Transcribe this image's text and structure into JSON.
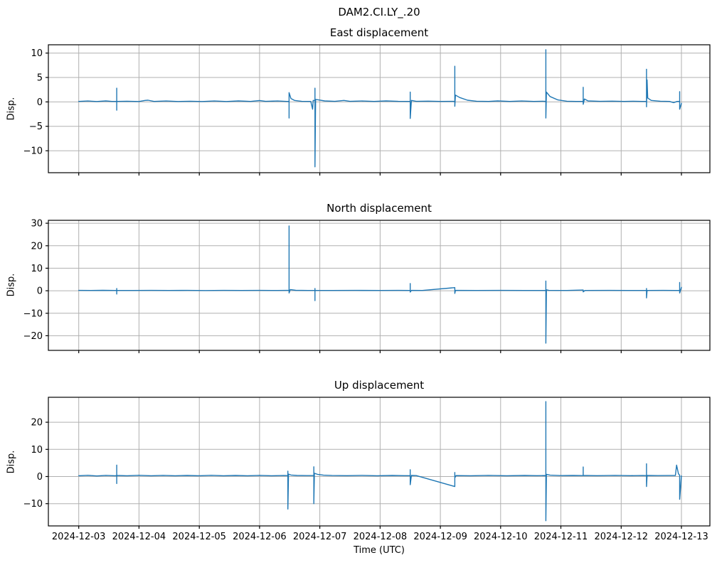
{
  "header": {
    "title": "DAM2.CI.LY_.20"
  },
  "colors": {
    "line": "#1f77b4",
    "grid": "#b0b0b0",
    "spine": "#000000",
    "text": "#000000",
    "background": "#ffffff"
  },
  "chart_data": [
    {
      "type": "line",
      "title": "East displacement",
      "ylabel": "Disp.",
      "xlabel": "",
      "show_x_tick_labels": false,
      "grid": true,
      "legend": "none",
      "x_unit": "days since 2024-12-03 00:00 UTC",
      "xlim": [
        -0.504,
        10.472
      ],
      "ylim": [
        -14.5,
        11.7
      ],
      "xtick_values": [
        0,
        1,
        2,
        3,
        4,
        5,
        6,
        7,
        8,
        9,
        10
      ],
      "xtick_labels": [
        "2024-12-03",
        "2024-12-04",
        "2024-12-05",
        "2024-12-06",
        "2024-12-07",
        "2024-12-08",
        "2024-12-09",
        "2024-12-10",
        "2024-12-11",
        "2024-12-12",
        "2024-12-13"
      ],
      "ytick_values": [
        -10,
        -5,
        0,
        5,
        10
      ],
      "ytick_labels": [
        "−10",
        "−5",
        "0",
        "5",
        "10"
      ],
      "points": [
        [
          0,
          0.1
        ],
        [
          0.15,
          0.18
        ],
        [
          0.3,
          0.08
        ],
        [
          0.45,
          0.2
        ],
        [
          0.55,
          0.1
        ],
        [
          0.63,
          0.1
        ],
        [
          0.63,
          2.8
        ],
        [
          0.63,
          -1.7
        ],
        [
          0.63,
          0.1
        ],
        [
          0.8,
          0.15
        ],
        [
          1.0,
          0.08
        ],
        [
          1.1,
          0.3
        ],
        [
          1.15,
          0.35
        ],
        [
          1.25,
          0.1
        ],
        [
          1.45,
          0.18
        ],
        [
          1.65,
          0.08
        ],
        [
          1.85,
          0.15
        ],
        [
          2.05,
          0.08
        ],
        [
          2.25,
          0.18
        ],
        [
          2.45,
          0.08
        ],
        [
          2.65,
          0.2
        ],
        [
          2.85,
          0.1
        ],
        [
          3.0,
          0.28
        ],
        [
          3.1,
          0.12
        ],
        [
          3.3,
          0.18
        ],
        [
          3.45,
          0.1
        ],
        [
          3.49,
          0.1
        ],
        [
          3.49,
          -3.3
        ],
        [
          3.49,
          1.9
        ],
        [
          3.52,
          0.7
        ],
        [
          3.58,
          0.3
        ],
        [
          3.7,
          0.12
        ],
        [
          3.85,
          0.1
        ],
        [
          3.88,
          -1.5
        ],
        [
          3.89,
          0.3
        ],
        [
          3.92,
          0.3
        ],
        [
          3.92,
          2.8
        ],
        [
          3.92,
          -13.3
        ],
        [
          3.93,
          0.5
        ],
        [
          3.98,
          0.4
        ],
        [
          4.08,
          0.2
        ],
        [
          4.25,
          0.12
        ],
        [
          4.4,
          0.3
        ],
        [
          4.5,
          0.12
        ],
        [
          4.7,
          0.18
        ],
        [
          4.9,
          0.1
        ],
        [
          5.1,
          0.2
        ],
        [
          5.3,
          0.12
        ],
        [
          5.5,
          0.1
        ],
        [
          5.5,
          2.0
        ],
        [
          5.5,
          -3.4
        ],
        [
          5.52,
          0.3
        ],
        [
          5.6,
          0.12
        ],
        [
          5.8,
          0.16
        ],
        [
          6.0,
          0.1
        ],
        [
          6.2,
          0.12
        ],
        [
          6.24,
          0.1
        ],
        [
          6.24,
          7.3
        ],
        [
          6.24,
          -0.9
        ],
        [
          6.25,
          1.4
        ],
        [
          6.32,
          0.9
        ],
        [
          6.45,
          0.35
        ],
        [
          6.6,
          0.15
        ],
        [
          6.8,
          0.1
        ],
        [
          6.95,
          0.2
        ],
        [
          7.15,
          0.1
        ],
        [
          7.35,
          0.18
        ],
        [
          7.55,
          0.1
        ],
        [
          7.7,
          0.14
        ],
        [
          7.75,
          0.1
        ],
        [
          7.75,
          10.7
        ],
        [
          7.75,
          -3.3
        ],
        [
          7.76,
          2.0
        ],
        [
          7.82,
          1.1
        ],
        [
          7.95,
          0.4
        ],
        [
          8.1,
          0.15
        ],
        [
          8.25,
          0.1
        ],
        [
          8.37,
          0.1
        ],
        [
          8.37,
          3.0
        ],
        [
          8.37,
          -0.5
        ],
        [
          8.39,
          0.6
        ],
        [
          8.45,
          0.2
        ],
        [
          8.65,
          0.12
        ],
        [
          8.85,
          0.16
        ],
        [
          9.05,
          0.1
        ],
        [
          9.2,
          0.15
        ],
        [
          9.35,
          0.1
        ],
        [
          9.42,
          0.1
        ],
        [
          9.42,
          6.7
        ],
        [
          9.42,
          -1.0
        ],
        [
          9.43,
          4.5
        ],
        [
          9.44,
          0.8
        ],
        [
          9.5,
          0.3
        ],
        [
          9.65,
          0.15
        ],
        [
          9.8,
          0.1
        ],
        [
          9.87,
          -0.15
        ],
        [
          9.93,
          0.1
        ],
        [
          9.97,
          0.1
        ],
        [
          9.97,
          2.1
        ],
        [
          9.97,
          -1.5
        ],
        [
          10.0,
          -0.3
        ]
      ]
    },
    {
      "type": "line",
      "title": "North displacement",
      "ylabel": "Disp.",
      "xlabel": "",
      "show_x_tick_labels": false,
      "grid": true,
      "legend": "none",
      "x_unit": "days since 2024-12-03 00:00 UTC",
      "xlim": [
        -0.504,
        10.472
      ],
      "ylim": [
        -26.5,
        31.3
      ],
      "xtick_values": [
        0,
        1,
        2,
        3,
        4,
        5,
        6,
        7,
        8,
        9,
        10
      ],
      "xtick_labels": [
        "2024-12-03",
        "2024-12-04",
        "2024-12-05",
        "2024-12-06",
        "2024-12-07",
        "2024-12-08",
        "2024-12-09",
        "2024-12-10",
        "2024-12-11",
        "2024-12-12",
        "2024-12-13"
      ],
      "ytick_values": [
        -20,
        -10,
        0,
        10,
        20,
        30
      ],
      "ytick_labels": [
        "−20",
        "−10",
        "0",
        "10",
        "20",
        "30"
      ],
      "points": [
        [
          0,
          0.15
        ],
        [
          0.2,
          0.12
        ],
        [
          0.4,
          0.18
        ],
        [
          0.6,
          0.13
        ],
        [
          0.63,
          0.15
        ],
        [
          0.63,
          1.0
        ],
        [
          0.63,
          -1.5
        ],
        [
          0.63,
          0.15
        ],
        [
          0.9,
          0.12
        ],
        [
          1.2,
          0.17
        ],
        [
          1.5,
          0.12
        ],
        [
          1.8,
          0.16
        ],
        [
          2.1,
          0.11
        ],
        [
          2.4,
          0.16
        ],
        [
          2.7,
          0.12
        ],
        [
          3.0,
          0.15
        ],
        [
          3.3,
          0.12
        ],
        [
          3.45,
          0.15
        ],
        [
          3.49,
          0.15
        ],
        [
          3.49,
          28.8
        ],
        [
          3.49,
          -1.0
        ],
        [
          3.51,
          0.5
        ],
        [
          3.6,
          0.2
        ],
        [
          3.8,
          0.13
        ],
        [
          3.92,
          0.15
        ],
        [
          3.92,
          1.0
        ],
        [
          3.92,
          -4.4
        ],
        [
          3.92,
          0.15
        ],
        [
          4.2,
          0.12
        ],
        [
          4.6,
          0.16
        ],
        [
          5.0,
          0.12
        ],
        [
          5.3,
          0.15
        ],
        [
          5.5,
          0.12
        ],
        [
          5.5,
          3.2
        ],
        [
          5.5,
          -0.6
        ],
        [
          5.52,
          0.15
        ],
        [
          5.7,
          0.12
        ],
        [
          6.24,
          1.4
        ],
        [
          6.24,
          -1.2
        ],
        [
          6.25,
          0.15
        ],
        [
          6.6,
          0.12
        ],
        [
          7.0,
          0.15
        ],
        [
          7.4,
          0.12
        ],
        [
          7.7,
          0.14
        ],
        [
          7.75,
          0.12
        ],
        [
          7.75,
          4.3
        ],
        [
          7.75,
          -23.3
        ],
        [
          7.76,
          0.4
        ],
        [
          7.8,
          0.15
        ],
        [
          8.1,
          0.12
        ],
        [
          8.37,
          0.3
        ],
        [
          8.37,
          -0.5
        ],
        [
          8.4,
          0.12
        ],
        [
          8.8,
          0.15
        ],
        [
          9.1,
          0.12
        ],
        [
          9.35,
          0.14
        ],
        [
          9.42,
          0.12
        ],
        [
          9.42,
          1.0
        ],
        [
          9.42,
          -3.2
        ],
        [
          9.43,
          0.12
        ],
        [
          9.7,
          0.15
        ],
        [
          9.9,
          0.12
        ],
        [
          9.97,
          0.12
        ],
        [
          9.97,
          3.7
        ],
        [
          9.97,
          -1.0
        ],
        [
          10.0,
          1.5
        ]
      ]
    },
    {
      "type": "line",
      "title": "Up displacement",
      "ylabel": "Disp.",
      "xlabel": "Time (UTC)",
      "show_x_tick_labels": true,
      "grid": true,
      "legend": "none",
      "x_unit": "days since 2024-12-03 00:00 UTC",
      "xlim": [
        -0.504,
        10.472
      ],
      "ylim": [
        -18.2,
        29.2
      ],
      "xtick_values": [
        0,
        1,
        2,
        3,
        4,
        5,
        6,
        7,
        8,
        9,
        10
      ],
      "xtick_labels": [
        "2024-12-03",
        "2024-12-04",
        "2024-12-05",
        "2024-12-06",
        "2024-12-07",
        "2024-12-08",
        "2024-12-09",
        "2024-12-10",
        "2024-12-11",
        "2024-12-12",
        "2024-12-13"
      ],
      "ytick_values": [
        -10,
        0,
        10,
        20
      ],
      "ytick_labels": [
        "−10",
        "0",
        "10",
        "20"
      ],
      "points": [
        [
          0,
          0.3
        ],
        [
          0.15,
          0.45
        ],
        [
          0.3,
          0.22
        ],
        [
          0.45,
          0.42
        ],
        [
          0.6,
          0.3
        ],
        [
          0.63,
          0.35
        ],
        [
          0.63,
          4.2
        ],
        [
          0.63,
          -2.6
        ],
        [
          0.63,
          0.4
        ],
        [
          0.8,
          0.3
        ],
        [
          1.0,
          0.45
        ],
        [
          1.2,
          0.28
        ],
        [
          1.4,
          0.42
        ],
        [
          1.6,
          0.28
        ],
        [
          1.8,
          0.4
        ],
        [
          2.0,
          0.3
        ],
        [
          2.2,
          0.44
        ],
        [
          2.4,
          0.28
        ],
        [
          2.6,
          0.4
        ],
        [
          2.8,
          0.3
        ],
        [
          3.0,
          0.42
        ],
        [
          3.2,
          0.3
        ],
        [
          3.4,
          0.38
        ],
        [
          3.47,
          0.35
        ],
        [
          3.47,
          2.0
        ],
        [
          3.47,
          -12.0
        ],
        [
          3.48,
          0.9
        ],
        [
          3.52,
          0.55
        ],
        [
          3.62,
          0.4
        ],
        [
          3.78,
          0.33
        ],
        [
          3.9,
          0.35
        ],
        [
          3.9,
          3.6
        ],
        [
          3.9,
          -10.0
        ],
        [
          3.91,
          1.2
        ],
        [
          3.96,
          0.8
        ],
        [
          4.06,
          0.5
        ],
        [
          4.2,
          0.38
        ],
        [
          4.45,
          0.32
        ],
        [
          4.7,
          0.42
        ],
        [
          4.95,
          0.3
        ],
        [
          5.2,
          0.4
        ],
        [
          5.4,
          0.32
        ],
        [
          5.5,
          0.35
        ],
        [
          5.5,
          2.5
        ],
        [
          5.5,
          -3.0
        ],
        [
          5.52,
          0.4
        ],
        [
          5.6,
          0.35
        ],
        [
          6.24,
          -3.7
        ],
        [
          6.24,
          1.5
        ],
        [
          6.24,
          -0.5
        ],
        [
          6.26,
          0.35
        ],
        [
          6.5,
          0.3
        ],
        [
          6.8,
          0.42
        ],
        [
          7.1,
          0.3
        ],
        [
          7.4,
          0.4
        ],
        [
          7.6,
          0.32
        ],
        [
          7.75,
          0.35
        ],
        [
          7.75,
          27.6
        ],
        [
          7.75,
          -16.3
        ],
        [
          7.76,
          0.8
        ],
        [
          7.82,
          0.5
        ],
        [
          8.0,
          0.35
        ],
        [
          8.2,
          0.4
        ],
        [
          8.37,
          0.35
        ],
        [
          8.37,
          3.5
        ],
        [
          8.37,
          0.4
        ],
        [
          8.6,
          0.32
        ],
        [
          8.9,
          0.42
        ],
        [
          9.15,
          0.32
        ],
        [
          9.35,
          0.38
        ],
        [
          9.42,
          0.35
        ],
        [
          9.42,
          4.7
        ],
        [
          9.42,
          -3.7
        ],
        [
          9.43,
          0.4
        ],
        [
          9.6,
          0.33
        ],
        [
          9.8,
          0.38
        ],
        [
          9.9,
          0.4
        ],
        [
          9.92,
          4.2
        ],
        [
          9.95,
          1.0
        ],
        [
          9.97,
          0.5
        ],
        [
          9.97,
          -8.4
        ],
        [
          10.0,
          0.3
        ]
      ]
    }
  ]
}
